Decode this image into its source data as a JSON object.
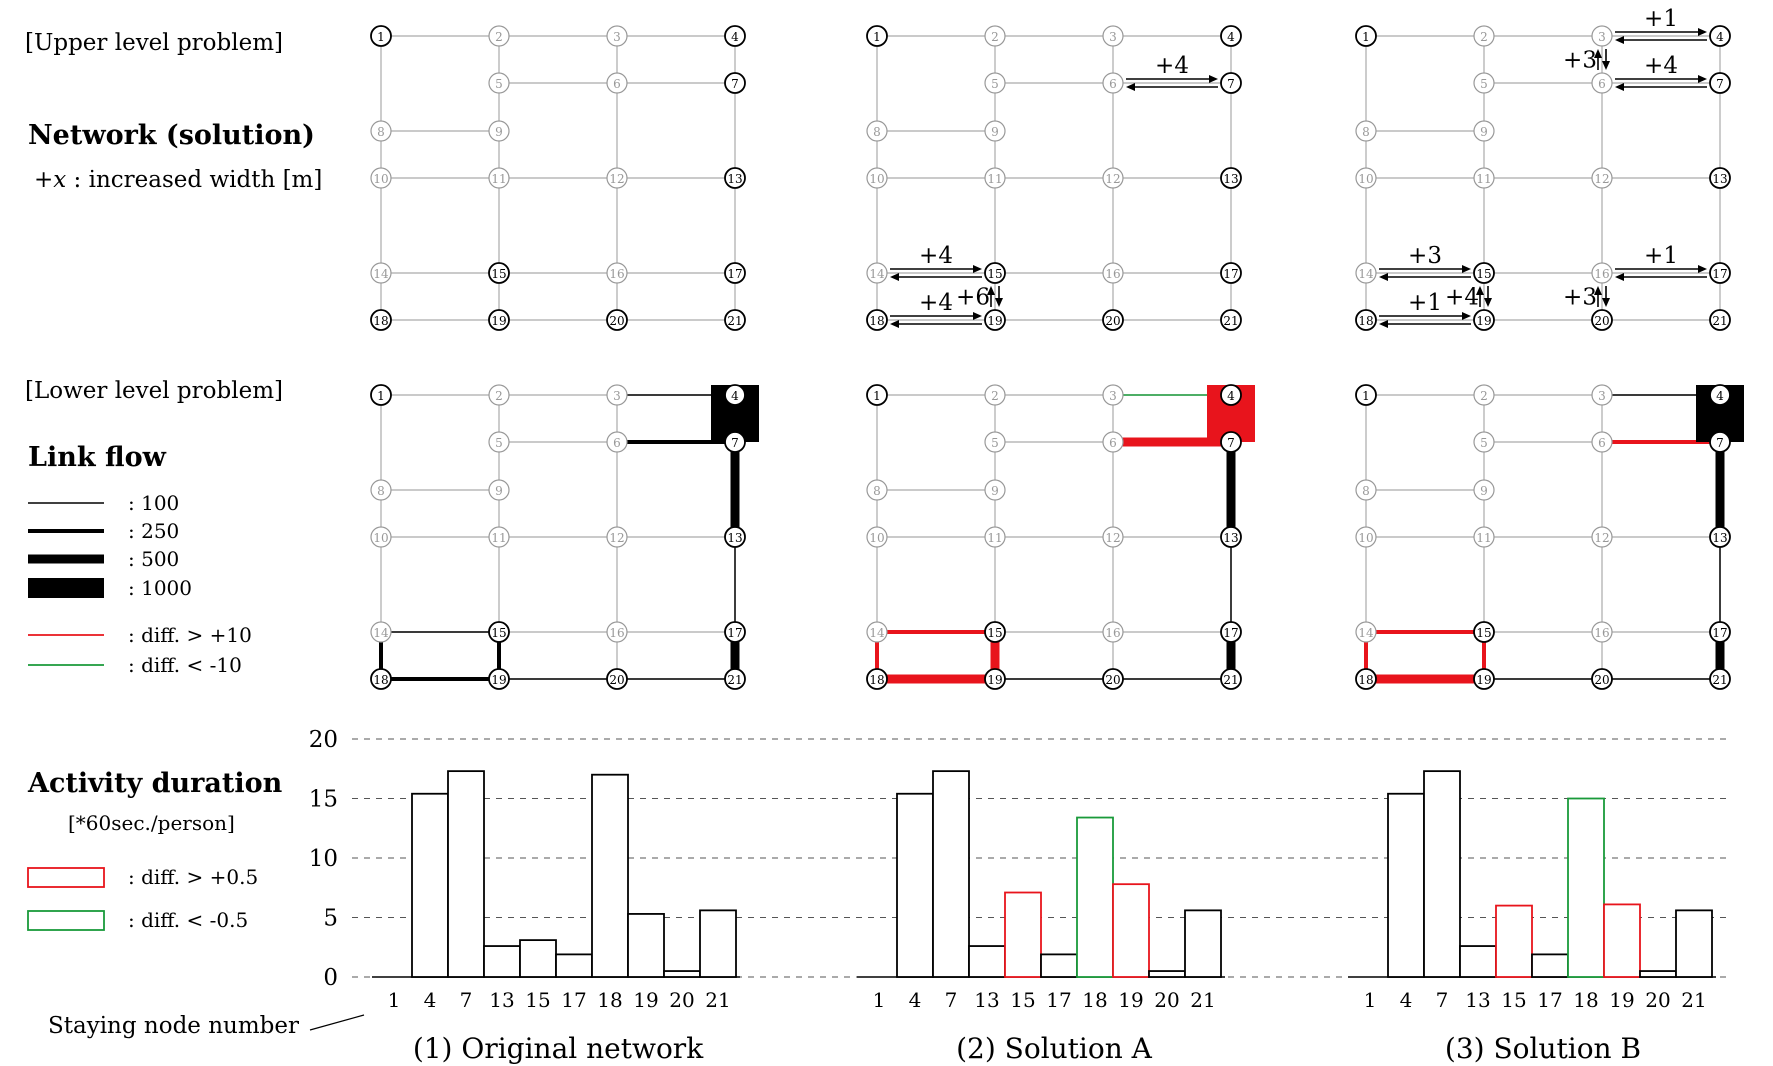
{
  "labels": {
    "upper": "[Upper level problem]",
    "network_title": "Network (solution)",
    "network_sub_var": "+x",
    "network_sub_rest": " : increased width [m]",
    "lower": "[Lower level problem]",
    "linkflow_title": "Link flow",
    "activity_title": "Activity duration",
    "activity_unit": "[*60sec./person]",
    "staying": "Staying node number"
  },
  "legend": {
    "linkflow": [
      {
        "label": ": 100",
        "weight": 100
      },
      {
        "label": ": 250",
        "weight": 250
      },
      {
        "label": ": 500",
        "weight": 500
      },
      {
        "label": ": 1000",
        "weight": 1000
      },
      {
        "label": ": diff. > +10",
        "color": "#e8141c"
      },
      {
        "label": ": diff. < -10",
        "color": "#1a9a3a"
      }
    ],
    "activity": [
      {
        "label": ": diff. > +0.5",
        "color": "#e8141c"
      },
      {
        "label": ": diff. < -0.5",
        "color": "#1a9a3a"
      }
    ]
  },
  "colors": {
    "increase": "#e8141c",
    "decrease": "#1a9a3a",
    "grid": "#aaaaaa",
    "link": "#000000"
  },
  "panels": [
    {
      "caption": "(1)  Original network",
      "active_nodes": [
        1,
        4,
        7,
        13,
        15,
        17,
        18,
        19,
        20,
        21
      ],
      "improvements": [],
      "flows": [
        {
          "from": 3,
          "to": 4,
          "weight": 100
        },
        {
          "from": 6,
          "to": 7,
          "weight": 250
        },
        {
          "from": 4,
          "to": 7,
          "weight": 1000
        },
        {
          "from": 7,
          "to": 13,
          "weight": 500
        },
        {
          "from": 13,
          "to": 17,
          "weight": 100
        },
        {
          "from": 17,
          "to": 21,
          "weight": 500
        },
        {
          "from": 14,
          "to": 15,
          "weight": 100
        },
        {
          "from": 18,
          "to": 19,
          "weight": 250
        },
        {
          "from": 15,
          "to": 19,
          "weight": 250
        },
        {
          "from": 14,
          "to": 18,
          "weight": 250
        },
        {
          "from": 19,
          "to": 20,
          "weight": 100
        },
        {
          "from": 20,
          "to": 21,
          "weight": 100
        }
      ],
      "bars": [
        {
          "node": "1",
          "value": 0,
          "status": "same"
        },
        {
          "node": "4",
          "value": 15.4,
          "status": "same"
        },
        {
          "node": "7",
          "value": 17.3,
          "status": "same"
        },
        {
          "node": "13",
          "value": 2.6,
          "status": "same"
        },
        {
          "node": "15",
          "value": 3.1,
          "status": "same"
        },
        {
          "node": "17",
          "value": 1.9,
          "status": "same"
        },
        {
          "node": "18",
          "value": 17.0,
          "status": "same"
        },
        {
          "node": "19",
          "value": 5.3,
          "status": "same"
        },
        {
          "node": "20",
          "value": 0.5,
          "status": "same"
        },
        {
          "node": "21",
          "value": 5.6,
          "status": "same"
        }
      ]
    },
    {
      "caption": "(2)   Solution A",
      "active_nodes": [
        1,
        4,
        7,
        13,
        15,
        17,
        18,
        19,
        20,
        21
      ],
      "improvements": [
        {
          "from": 6,
          "to": 7,
          "label": "+4"
        },
        {
          "from": 14,
          "to": 15,
          "label": "+4"
        },
        {
          "from": 15,
          "to": 19,
          "label": "+6"
        },
        {
          "from": 18,
          "to": 19,
          "label": "+4"
        }
      ],
      "flows": [
        {
          "from": 3,
          "to": 4,
          "weight": 100,
          "status": "decrease"
        },
        {
          "from": 6,
          "to": 7,
          "weight": 500,
          "status": "increase"
        },
        {
          "from": 4,
          "to": 7,
          "weight": 1000,
          "status": "increase"
        },
        {
          "from": 7,
          "to": 13,
          "weight": 500
        },
        {
          "from": 13,
          "to": 17,
          "weight": 100
        },
        {
          "from": 17,
          "to": 21,
          "weight": 500
        },
        {
          "from": 14,
          "to": 15,
          "weight": 250,
          "status": "increase"
        },
        {
          "from": 18,
          "to": 19,
          "weight": 500,
          "status": "increase"
        },
        {
          "from": 15,
          "to": 19,
          "weight": 500,
          "status": "increase"
        },
        {
          "from": 14,
          "to": 18,
          "weight": 250,
          "status": "increase"
        },
        {
          "from": 19,
          "to": 20,
          "weight": 100
        },
        {
          "from": 20,
          "to": 21,
          "weight": 100
        }
      ],
      "bars": [
        {
          "node": "1",
          "value": 0,
          "status": "same"
        },
        {
          "node": "4",
          "value": 15.4,
          "status": "same"
        },
        {
          "node": "7",
          "value": 17.3,
          "status": "same"
        },
        {
          "node": "13",
          "value": 2.6,
          "status": "same"
        },
        {
          "node": "15",
          "value": 7.1,
          "status": "increase"
        },
        {
          "node": "17",
          "value": 1.9,
          "status": "same"
        },
        {
          "node": "18",
          "value": 13.4,
          "status": "decrease"
        },
        {
          "node": "19",
          "value": 7.8,
          "status": "increase"
        },
        {
          "node": "20",
          "value": 0.5,
          "status": "same"
        },
        {
          "node": "21",
          "value": 5.6,
          "status": "same"
        }
      ]
    },
    {
      "caption": "(3)   Solution B",
      "active_nodes": [
        1,
        4,
        7,
        13,
        15,
        17,
        18,
        19,
        20,
        21
      ],
      "improvements": [
        {
          "from": 3,
          "to": 4,
          "label": "+1"
        },
        {
          "from": 3,
          "to": 6,
          "label": "+3"
        },
        {
          "from": 6,
          "to": 7,
          "label": "+4"
        },
        {
          "from": 14,
          "to": 15,
          "label": "+3"
        },
        {
          "from": 16,
          "to": 17,
          "label": "+1"
        },
        {
          "from": 15,
          "to": 19,
          "label": "+4"
        },
        {
          "from": 16,
          "to": 20,
          "label": "+3"
        },
        {
          "from": 18,
          "to": 19,
          "label": "+1"
        }
      ],
      "flows": [
        {
          "from": 3,
          "to": 4,
          "weight": 100
        },
        {
          "from": 6,
          "to": 7,
          "weight": 250,
          "status": "increase"
        },
        {
          "from": 4,
          "to": 7,
          "weight": 1000
        },
        {
          "from": 7,
          "to": 13,
          "weight": 500
        },
        {
          "from": 13,
          "to": 17,
          "weight": 100
        },
        {
          "from": 17,
          "to": 21,
          "weight": 500
        },
        {
          "from": 14,
          "to": 15,
          "weight": 250,
          "status": "increase"
        },
        {
          "from": 18,
          "to": 19,
          "weight": 500,
          "status": "increase"
        },
        {
          "from": 15,
          "to": 19,
          "weight": 250,
          "status": "increase"
        },
        {
          "from": 14,
          "to": 18,
          "weight": 250,
          "status": "increase"
        },
        {
          "from": 19,
          "to": 20,
          "weight": 100
        },
        {
          "from": 20,
          "to": 21,
          "weight": 100
        }
      ],
      "bars": [
        {
          "node": "1",
          "value": 0,
          "status": "same"
        },
        {
          "node": "4",
          "value": 15.4,
          "status": "same"
        },
        {
          "node": "7",
          "value": 17.3,
          "status": "same"
        },
        {
          "node": "13",
          "value": 2.6,
          "status": "same"
        },
        {
          "node": "15",
          "value": 6.0,
          "status": "increase"
        },
        {
          "node": "17",
          "value": 1.9,
          "status": "same"
        },
        {
          "node": "18",
          "value": 15.0,
          "status": "decrease"
        },
        {
          "node": "19",
          "value": 6.1,
          "status": "increase"
        },
        {
          "node": "20",
          "value": 0.5,
          "status": "same"
        },
        {
          "node": "21",
          "value": 5.6,
          "status": "same"
        }
      ]
    }
  ],
  "chart_data": {
    "type": "bar",
    "ylabel": "Activity duration [*60sec./person]",
    "xlabel": "Staying node number",
    "ylim": [
      0,
      20
    ],
    "yticks": [
      0,
      5,
      10,
      15,
      20
    ],
    "categories": [
      "1",
      "4",
      "7",
      "13",
      "15",
      "17",
      "18",
      "19",
      "20",
      "21"
    ],
    "series": [
      {
        "name": "(1)  Original network",
        "values": [
          0,
          15.4,
          17.3,
          2.6,
          3.1,
          1.9,
          17.0,
          5.3,
          0.5,
          5.6
        ]
      },
      {
        "name": "(2)   Solution A",
        "values": [
          0,
          15.4,
          17.3,
          2.6,
          7.1,
          1.9,
          13.4,
          7.8,
          0.5,
          5.6
        ]
      },
      {
        "name": "(3)   Solution B",
        "values": [
          0,
          15.4,
          17.3,
          2.6,
          6.0,
          1.9,
          15.0,
          6.1,
          0.5,
          5.6
        ]
      }
    ],
    "grid": true
  }
}
